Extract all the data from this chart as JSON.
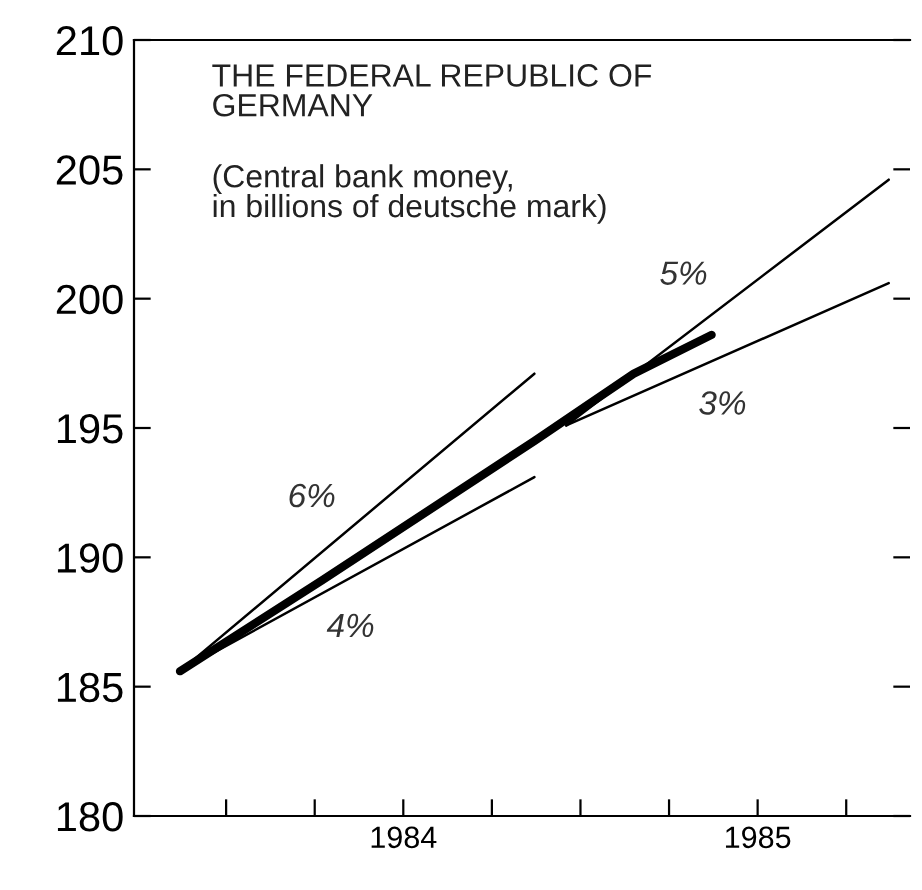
{
  "chart_data": {
    "type": "line",
    "title": "THE FEDERAL REPUBLIC OF\nGERMANY",
    "subtitle": "(Central bank money,\nin billions of deutsche mark)",
    "series": [
      {
        "color": "#000000",
        "x": [
          1983.87,
          1984.27,
          1984.87,
          1985.15,
          1985.37
        ],
        "values": [
          185.6,
          189.1,
          194.5,
          197.1,
          198.6
        ]
      },
      {
        "name": "6%",
        "color": "#000000",
        "x": [
          1983.87,
          1984.87
        ],
        "values": [
          185.6,
          197.1
        ]
      },
      {
        "name": "4%",
        "color": "#000000",
        "x": [
          1983.87,
          1984.87
        ],
        "values": [
          185.6,
          193.1
        ]
      },
      {
        "name": "5%",
        "color": "#000000",
        "x": [
          1984.96,
          1985.87
        ],
        "values": [
          195.1,
          204.6
        ]
      },
      {
        "name": "3%",
        "color": "#000000",
        "x": [
          1984.96,
          1985.87
        ],
        "values": [
          195.1,
          200.6
        ]
      }
    ],
    "xlim": [
      1983.74,
      1985.93
    ],
    "ylim": [
      180,
      210
    ],
    "xticks": [
      {
        "value": 1984.0,
        "label": null
      },
      {
        "value": 1984.25,
        "label": null
      },
      {
        "value": 1984.5,
        "label": "1984"
      },
      {
        "value": 1984.75,
        "label": null
      },
      {
        "value": 1985.0,
        "label": null
      },
      {
        "value": 1985.25,
        "label": null
      },
      {
        "value": 1985.5,
        "label": "1985"
      },
      {
        "value": 1985.75,
        "label": null
      }
    ],
    "yticks": [
      180,
      185,
      190,
      195,
      200,
      205,
      210
    ],
    "grid": false,
    "legend": false,
    "marker": "none",
    "line_style": "solid"
  }
}
